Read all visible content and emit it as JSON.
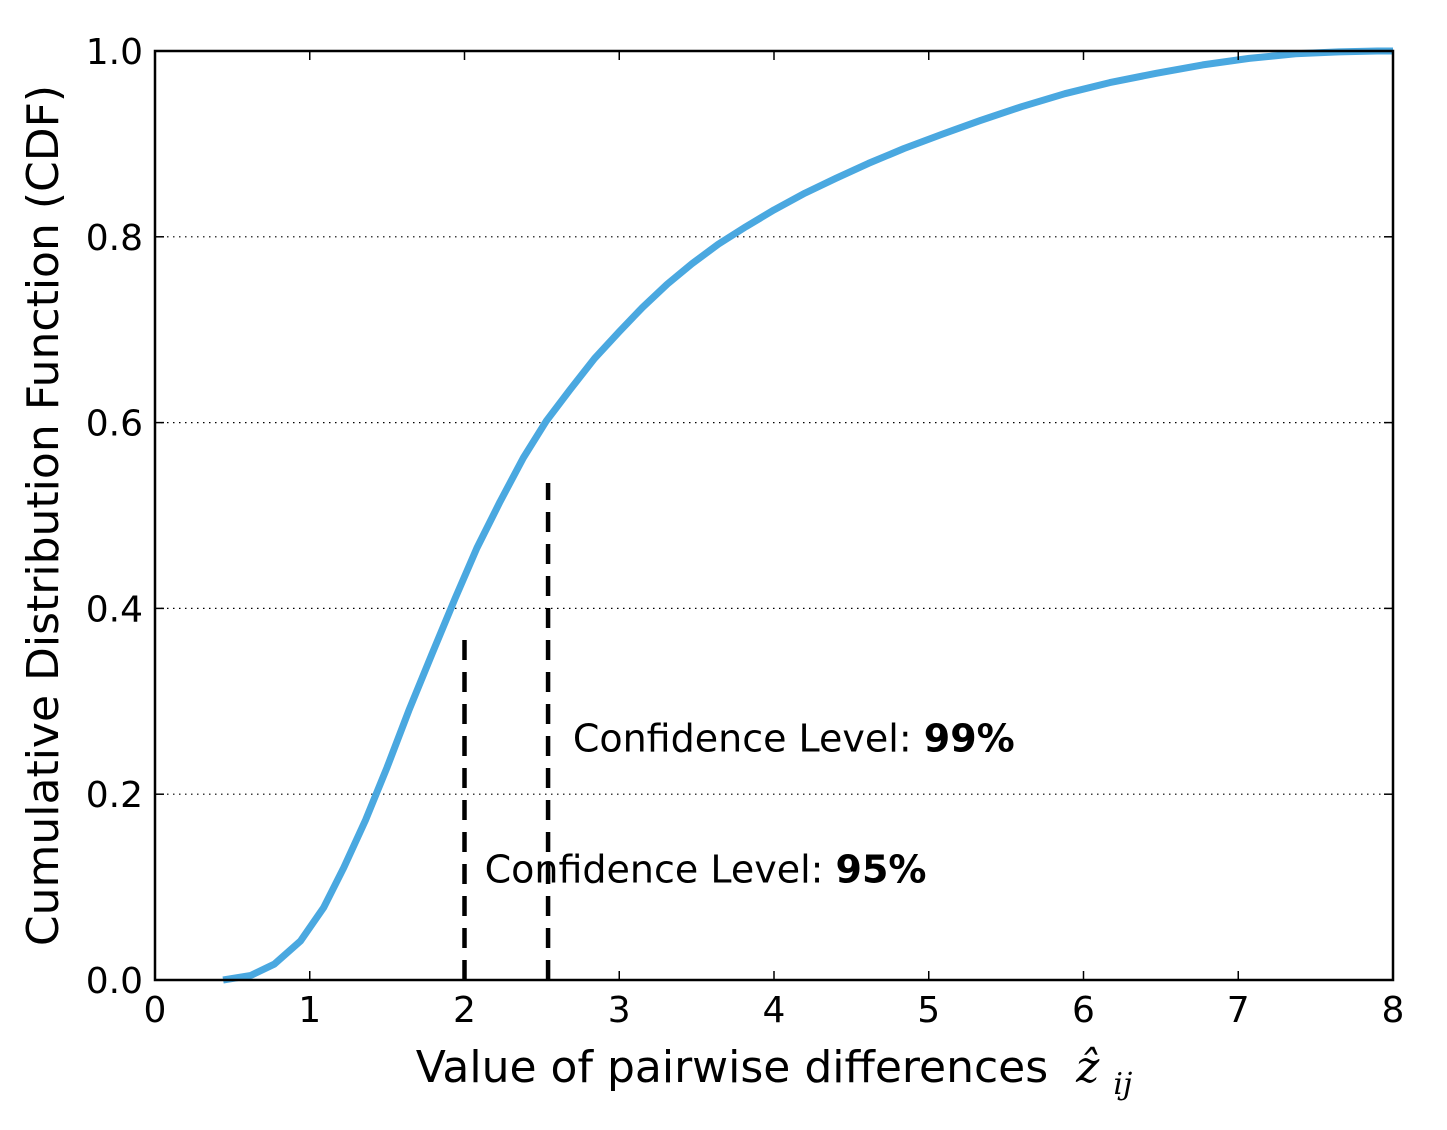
{
  "chart_data": {
    "type": "line",
    "title": "",
    "xlabel": "Value of pairwise differences",
    "xlabel_math": "ẑ",
    "xlabel_math_sub": "ij",
    "ylabel": "Cumulative Distribution Function (CDF)",
    "xlim": [
      0,
      8
    ],
    "ylim": [
      0,
      1
    ],
    "xticks": [
      0,
      1,
      2,
      3,
      4,
      5,
      6,
      7,
      8
    ],
    "xtick_labels": [
      "0",
      "1",
      "2",
      "3",
      "4",
      "5",
      "6",
      "7",
      "8"
    ],
    "yticks": [
      0.0,
      0.2,
      0.4,
      0.6,
      0.8,
      1.0
    ],
    "ytick_labels": [
      "0.0",
      "0.2",
      "0.4",
      "0.6",
      "0.8",
      "1.0"
    ],
    "grid": "horizontal dotted",
    "series": [
      {
        "name": "CDF",
        "color": "#4aa8e0",
        "x": [
          0.44,
          0.62,
          0.77,
          0.94,
          1.09,
          1.22,
          1.36,
          1.5,
          1.64,
          1.79,
          1.94,
          2.08,
          2.23,
          2.38,
          2.53,
          2.68,
          2.84,
          3.0,
          3.15,
          3.31,
          3.47,
          3.64,
          3.82,
          4.0,
          4.2,
          4.4,
          4.61,
          4.84,
          5.08,
          5.33,
          5.6,
          5.88,
          6.17,
          6.47,
          6.77,
          7.07,
          7.37,
          7.65,
          7.9,
          8.0
        ],
        "y": [
          0.0,
          0.005,
          0.017,
          0.042,
          0.078,
          0.121,
          0.172,
          0.229,
          0.29,
          0.351,
          0.411,
          0.465,
          0.515,
          0.562,
          0.602,
          0.635,
          0.669,
          0.698,
          0.724,
          0.749,
          0.771,
          0.792,
          0.811,
          0.829,
          0.847,
          0.863,
          0.879,
          0.895,
          0.91,
          0.925,
          0.94,
          0.954,
          0.966,
          0.976,
          0.985,
          0.992,
          0.997,
          0.999,
          1.0,
          1.0
        ]
      }
    ],
    "vlines": [
      {
        "name": "95%",
        "x": 2.0,
        "ymin": 0.0,
        "ymax": 0.37,
        "style": "dashed",
        "color": "#000000"
      },
      {
        "name": "99%",
        "x": 2.54,
        "ymin": 0.0,
        "ymax": 0.535,
        "style": "dashed",
        "color": "#000000"
      }
    ],
    "annotations": [
      {
        "text": "Confidence Level: ",
        "bold": "99%",
        "x": 2.7,
        "y": 0.246
      },
      {
        "text": "Confidence Level: ",
        "bold": "95%",
        "x": 2.13,
        "y": 0.105
      }
    ]
  }
}
